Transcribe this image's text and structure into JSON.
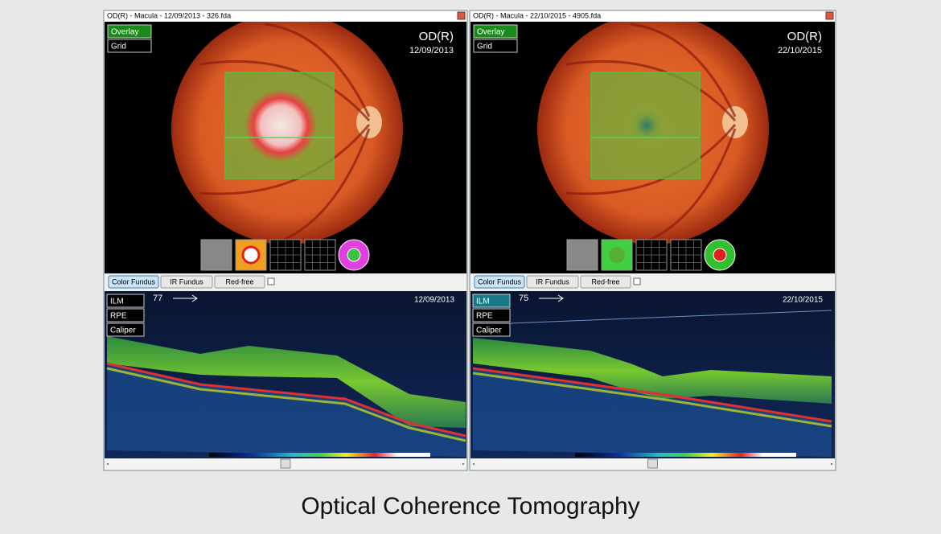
{
  "caption": "Optical Coherence Tomography",
  "panels": [
    {
      "title_bar": "OD(R) - Macula - 12/09/2013 - 326.fda",
      "overlay_buttons": [
        "Overlay",
        "Grid"
      ],
      "eye": "OD(R)",
      "fundus_date": "12/09/2013",
      "fundus_tabs": [
        "Color Fundus",
        "IR Fundus",
        "Red-free"
      ],
      "oct_buttons": [
        "ILM",
        "RPE",
        "Caliper"
      ],
      "scan_index": 77,
      "oct_date": "12/09/2013"
    },
    {
      "title_bar": "OD(R) - Macula - 22/10/2015 - 4905.fda",
      "overlay_buttons": [
        "Overlay",
        "Grid"
      ],
      "eye": "OD(R)",
      "fundus_date": "22/10/2015",
      "fundus_tabs": [
        "Color Fundus",
        "IR Fundus",
        "Red-free"
      ],
      "oct_buttons": [
        "ILM",
        "RPE",
        "Caliper"
      ],
      "scan_index": 75,
      "oct_date": "22/10/2015"
    }
  ]
}
